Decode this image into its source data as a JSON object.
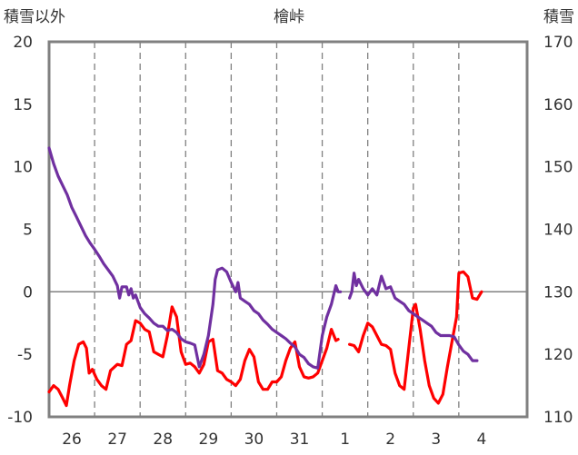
{
  "chart_data": {
    "type": "line",
    "title": "檜峠",
    "ylabel_left": "積雪以外",
    "ylabel_right": "積雪",
    "ylim_left": [
      -10,
      20
    ],
    "ylim_right": [
      110,
      170
    ],
    "yticks_left": [
      20,
      15,
      10,
      5,
      0,
      -5,
      -10
    ],
    "yticks_right": [
      170,
      160,
      150,
      140,
      130,
      120,
      110
    ],
    "x_range": [
      0,
      10.5
    ],
    "x_categories": [
      "26",
      "27",
      "28",
      "29",
      "30",
      "31",
      "1",
      "2",
      "3",
      "4"
    ],
    "grid": "dashed vertical at day boundaries",
    "series": [
      {
        "axis": "left",
        "color": "#ff0000",
        "points": [
          [
            0.0,
            -8.0
          ],
          [
            0.1,
            -7.5
          ],
          [
            0.2,
            -7.8
          ],
          [
            0.3,
            -8.5
          ],
          [
            0.38,
            -9.1
          ],
          [
            0.45,
            -7.5
          ],
          [
            0.55,
            -5.5
          ],
          [
            0.65,
            -4.2
          ],
          [
            0.75,
            -4.0
          ],
          [
            0.82,
            -4.5
          ],
          [
            0.88,
            -6.5
          ],
          [
            0.95,
            -6.2
          ],
          [
            1.05,
            -7.0
          ],
          [
            1.15,
            -7.5
          ],
          [
            1.25,
            -7.8
          ],
          [
            1.35,
            -6.3
          ],
          [
            1.5,
            -5.8
          ],
          [
            1.6,
            -5.9
          ],
          [
            1.7,
            -4.2
          ],
          [
            1.8,
            -3.9
          ],
          [
            1.9,
            -2.3
          ],
          [
            2.0,
            -2.5
          ],
          [
            2.1,
            -3.0
          ],
          [
            2.2,
            -3.2
          ],
          [
            2.3,
            -4.8
          ],
          [
            2.4,
            -5.0
          ],
          [
            2.5,
            -5.2
          ],
          [
            2.6,
            -3.5
          ],
          [
            2.7,
            -1.2
          ],
          [
            2.8,
            -2.0
          ],
          [
            2.9,
            -4.8
          ],
          [
            3.0,
            -5.8
          ],
          [
            3.1,
            -5.7
          ],
          [
            3.2,
            -6.0
          ],
          [
            3.3,
            -6.5
          ],
          [
            3.4,
            -5.8
          ],
          [
            3.5,
            -4.0
          ],
          [
            3.6,
            -3.8
          ],
          [
            3.7,
            -6.3
          ],
          [
            3.8,
            -6.5
          ],
          [
            3.9,
            -7.0
          ],
          [
            4.0,
            -7.2
          ],
          [
            4.1,
            -7.5
          ],
          [
            4.2,
            -7.0
          ],
          [
            4.3,
            -5.5
          ],
          [
            4.4,
            -4.6
          ],
          [
            4.5,
            -5.2
          ],
          [
            4.6,
            -7.2
          ],
          [
            4.7,
            -7.8
          ],
          [
            4.8,
            -7.8
          ],
          [
            4.9,
            -7.2
          ],
          [
            5.0,
            -7.2
          ],
          [
            5.1,
            -6.8
          ],
          [
            5.2,
            -5.5
          ],
          [
            5.3,
            -4.5
          ],
          [
            5.4,
            -4.0
          ],
          [
            5.5,
            -6.0
          ],
          [
            5.6,
            -6.8
          ],
          [
            5.7,
            -6.9
          ],
          [
            5.8,
            -6.8
          ],
          [
            5.9,
            -6.5
          ],
          [
            6.0,
            -5.5
          ],
          [
            6.1,
            -4.5
          ],
          [
            6.2,
            -3.0
          ],
          [
            6.3,
            -3.9
          ],
          [
            6.35,
            -3.8
          ]
        ]
      },
      {
        "axis": "left",
        "color": "#ff0000",
        "points": [
          [
            6.6,
            -4.2
          ],
          [
            6.7,
            -4.3
          ],
          [
            6.8,
            -4.8
          ],
          [
            6.9,
            -3.5
          ],
          [
            7.0,
            -2.5
          ],
          [
            7.1,
            -2.8
          ],
          [
            7.2,
            -3.5
          ],
          [
            7.3,
            -4.2
          ],
          [
            7.4,
            -4.3
          ],
          [
            7.5,
            -4.6
          ],
          [
            7.6,
            -6.5
          ],
          [
            7.7,
            -7.5
          ],
          [
            7.8,
            -7.8
          ],
          [
            7.9,
            -4.5
          ],
          [
            8.0,
            -1.3
          ],
          [
            8.05,
            -1.0
          ],
          [
            8.15,
            -3.0
          ],
          [
            8.25,
            -5.5
          ],
          [
            8.35,
            -7.5
          ],
          [
            8.45,
            -8.5
          ],
          [
            8.55,
            -8.9
          ],
          [
            8.65,
            -8.2
          ],
          [
            8.75,
            -6.0
          ],
          [
            8.85,
            -4.0
          ],
          [
            8.95,
            -2.0
          ],
          [
            9.0,
            1.5
          ],
          [
            9.1,
            1.6
          ],
          [
            9.2,
            1.2
          ],
          [
            9.3,
            -0.5
          ],
          [
            9.4,
            -0.6
          ],
          [
            9.5,
            0.0
          ]
        ]
      },
      {
        "axis": "right",
        "color": "#7030a0",
        "points": [
          [
            0.0,
            153.0
          ],
          [
            0.1,
            150.5
          ],
          [
            0.2,
            148.5
          ],
          [
            0.3,
            147.0
          ],
          [
            0.4,
            145.5
          ],
          [
            0.5,
            143.5
          ],
          [
            0.6,
            142.0
          ],
          [
            0.7,
            140.5
          ],
          [
            0.8,
            139.0
          ],
          [
            0.9,
            137.8
          ],
          [
            1.0,
            136.8
          ],
          [
            1.1,
            135.7
          ],
          [
            1.2,
            134.5
          ],
          [
            1.3,
            133.5
          ],
          [
            1.4,
            132.5
          ],
          [
            1.5,
            131.0
          ],
          [
            1.55,
            129.0
          ],
          [
            1.6,
            130.8
          ],
          [
            1.7,
            130.8
          ],
          [
            1.75,
            129.5
          ],
          [
            1.8,
            130.5
          ],
          [
            1.85,
            129.0
          ],
          [
            1.9,
            129.5
          ],
          [
            2.0,
            127.5
          ],
          [
            2.1,
            126.5
          ],
          [
            2.2,
            125.8
          ],
          [
            2.3,
            125.0
          ],
          [
            2.4,
            124.5
          ],
          [
            2.5,
            124.5
          ],
          [
            2.6,
            123.8
          ],
          [
            2.7,
            124.0
          ],
          [
            2.8,
            123.5
          ],
          [
            2.9,
            122.5
          ],
          [
            3.0,
            122.0
          ],
          [
            3.1,
            121.8
          ],
          [
            3.2,
            121.5
          ],
          [
            3.3,
            118.0
          ],
          [
            3.4,
            120.0
          ],
          [
            3.5,
            123.0
          ],
          [
            3.6,
            128.0
          ],
          [
            3.65,
            132.0
          ],
          [
            3.7,
            133.5
          ],
          [
            3.8,
            133.8
          ],
          [
            3.9,
            133.2
          ],
          [
            4.0,
            131.5
          ],
          [
            4.1,
            130.0
          ],
          [
            4.15,
            131.5
          ],
          [
            4.2,
            129.0
          ],
          [
            4.3,
            128.5
          ],
          [
            4.4,
            128.0
          ],
          [
            4.5,
            127.0
          ],
          [
            4.6,
            126.5
          ],
          [
            4.7,
            125.5
          ],
          [
            4.8,
            124.8
          ],
          [
            4.9,
            124.0
          ],
          [
            5.0,
            123.5
          ],
          [
            5.1,
            123.0
          ],
          [
            5.2,
            122.5
          ],
          [
            5.3,
            121.8
          ],
          [
            5.4,
            121.2
          ],
          [
            5.5,
            120.0
          ],
          [
            5.6,
            119.5
          ],
          [
            5.7,
            118.5
          ],
          [
            5.8,
            118.0
          ],
          [
            5.9,
            117.8
          ],
          [
            6.0,
            123.0
          ],
          [
            6.1,
            126.0
          ],
          [
            6.2,
            128.0
          ],
          [
            6.3,
            131.0
          ],
          [
            6.35,
            130.0
          ],
          [
            6.4,
            130.0
          ]
        ]
      },
      {
        "axis": "right",
        "color": "#7030a0",
        "points": [
          [
            6.6,
            129.0
          ],
          [
            6.65,
            130.0
          ],
          [
            6.7,
            133.0
          ],
          [
            6.75,
            131.0
          ],
          [
            6.8,
            132.0
          ],
          [
            6.9,
            130.5
          ],
          [
            7.0,
            129.5
          ],
          [
            7.1,
            130.5
          ],
          [
            7.2,
            129.5
          ],
          [
            7.3,
            132.5
          ],
          [
            7.4,
            130.5
          ],
          [
            7.5,
            130.8
          ],
          [
            7.6,
            129.0
          ],
          [
            7.7,
            128.5
          ],
          [
            7.8,
            128.0
          ],
          [
            7.9,
            127.0
          ],
          [
            8.0,
            126.5
          ],
          [
            8.1,
            126.0
          ],
          [
            8.2,
            125.5
          ],
          [
            8.3,
            125.0
          ],
          [
            8.4,
            124.5
          ],
          [
            8.5,
            123.5
          ],
          [
            8.6,
            123.0
          ],
          [
            8.7,
            123.0
          ],
          [
            8.8,
            123.0
          ],
          [
            8.9,
            122.8
          ],
          [
            9.0,
            121.5
          ],
          [
            9.1,
            120.5
          ],
          [
            9.2,
            120.0
          ],
          [
            9.3,
            119.0
          ],
          [
            9.4,
            119.0
          ]
        ]
      }
    ]
  }
}
